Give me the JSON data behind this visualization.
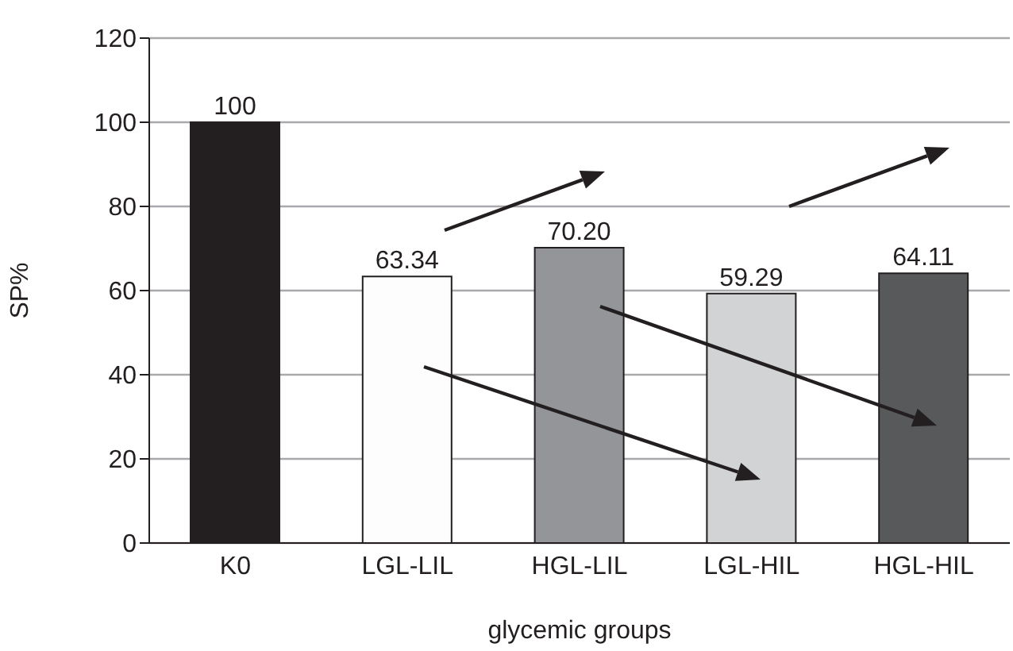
{
  "chart_data": {
    "type": "bar",
    "xlabel": "glycemic groups",
    "ylabel": "SP%",
    "categories": [
      "K0",
      "LGL-LIL",
      "HGL-LIL",
      "LGL-HIL",
      "HGL-HIL"
    ],
    "values": [
      100,
      63.34,
      70.2,
      59.29,
      64.11
    ],
    "value_labels": [
      "100",
      "63.34",
      "70.20",
      "59.29",
      "64.11"
    ],
    "colors": [
      "#231f20",
      "#fdfdfd",
      "#939598",
      "#d1d3d4",
      "#58595b"
    ],
    "ylim": [
      0,
      120
    ],
    "yticks": [
      0,
      20,
      40,
      60,
      80,
      100,
      120
    ],
    "grid": "y"
  }
}
